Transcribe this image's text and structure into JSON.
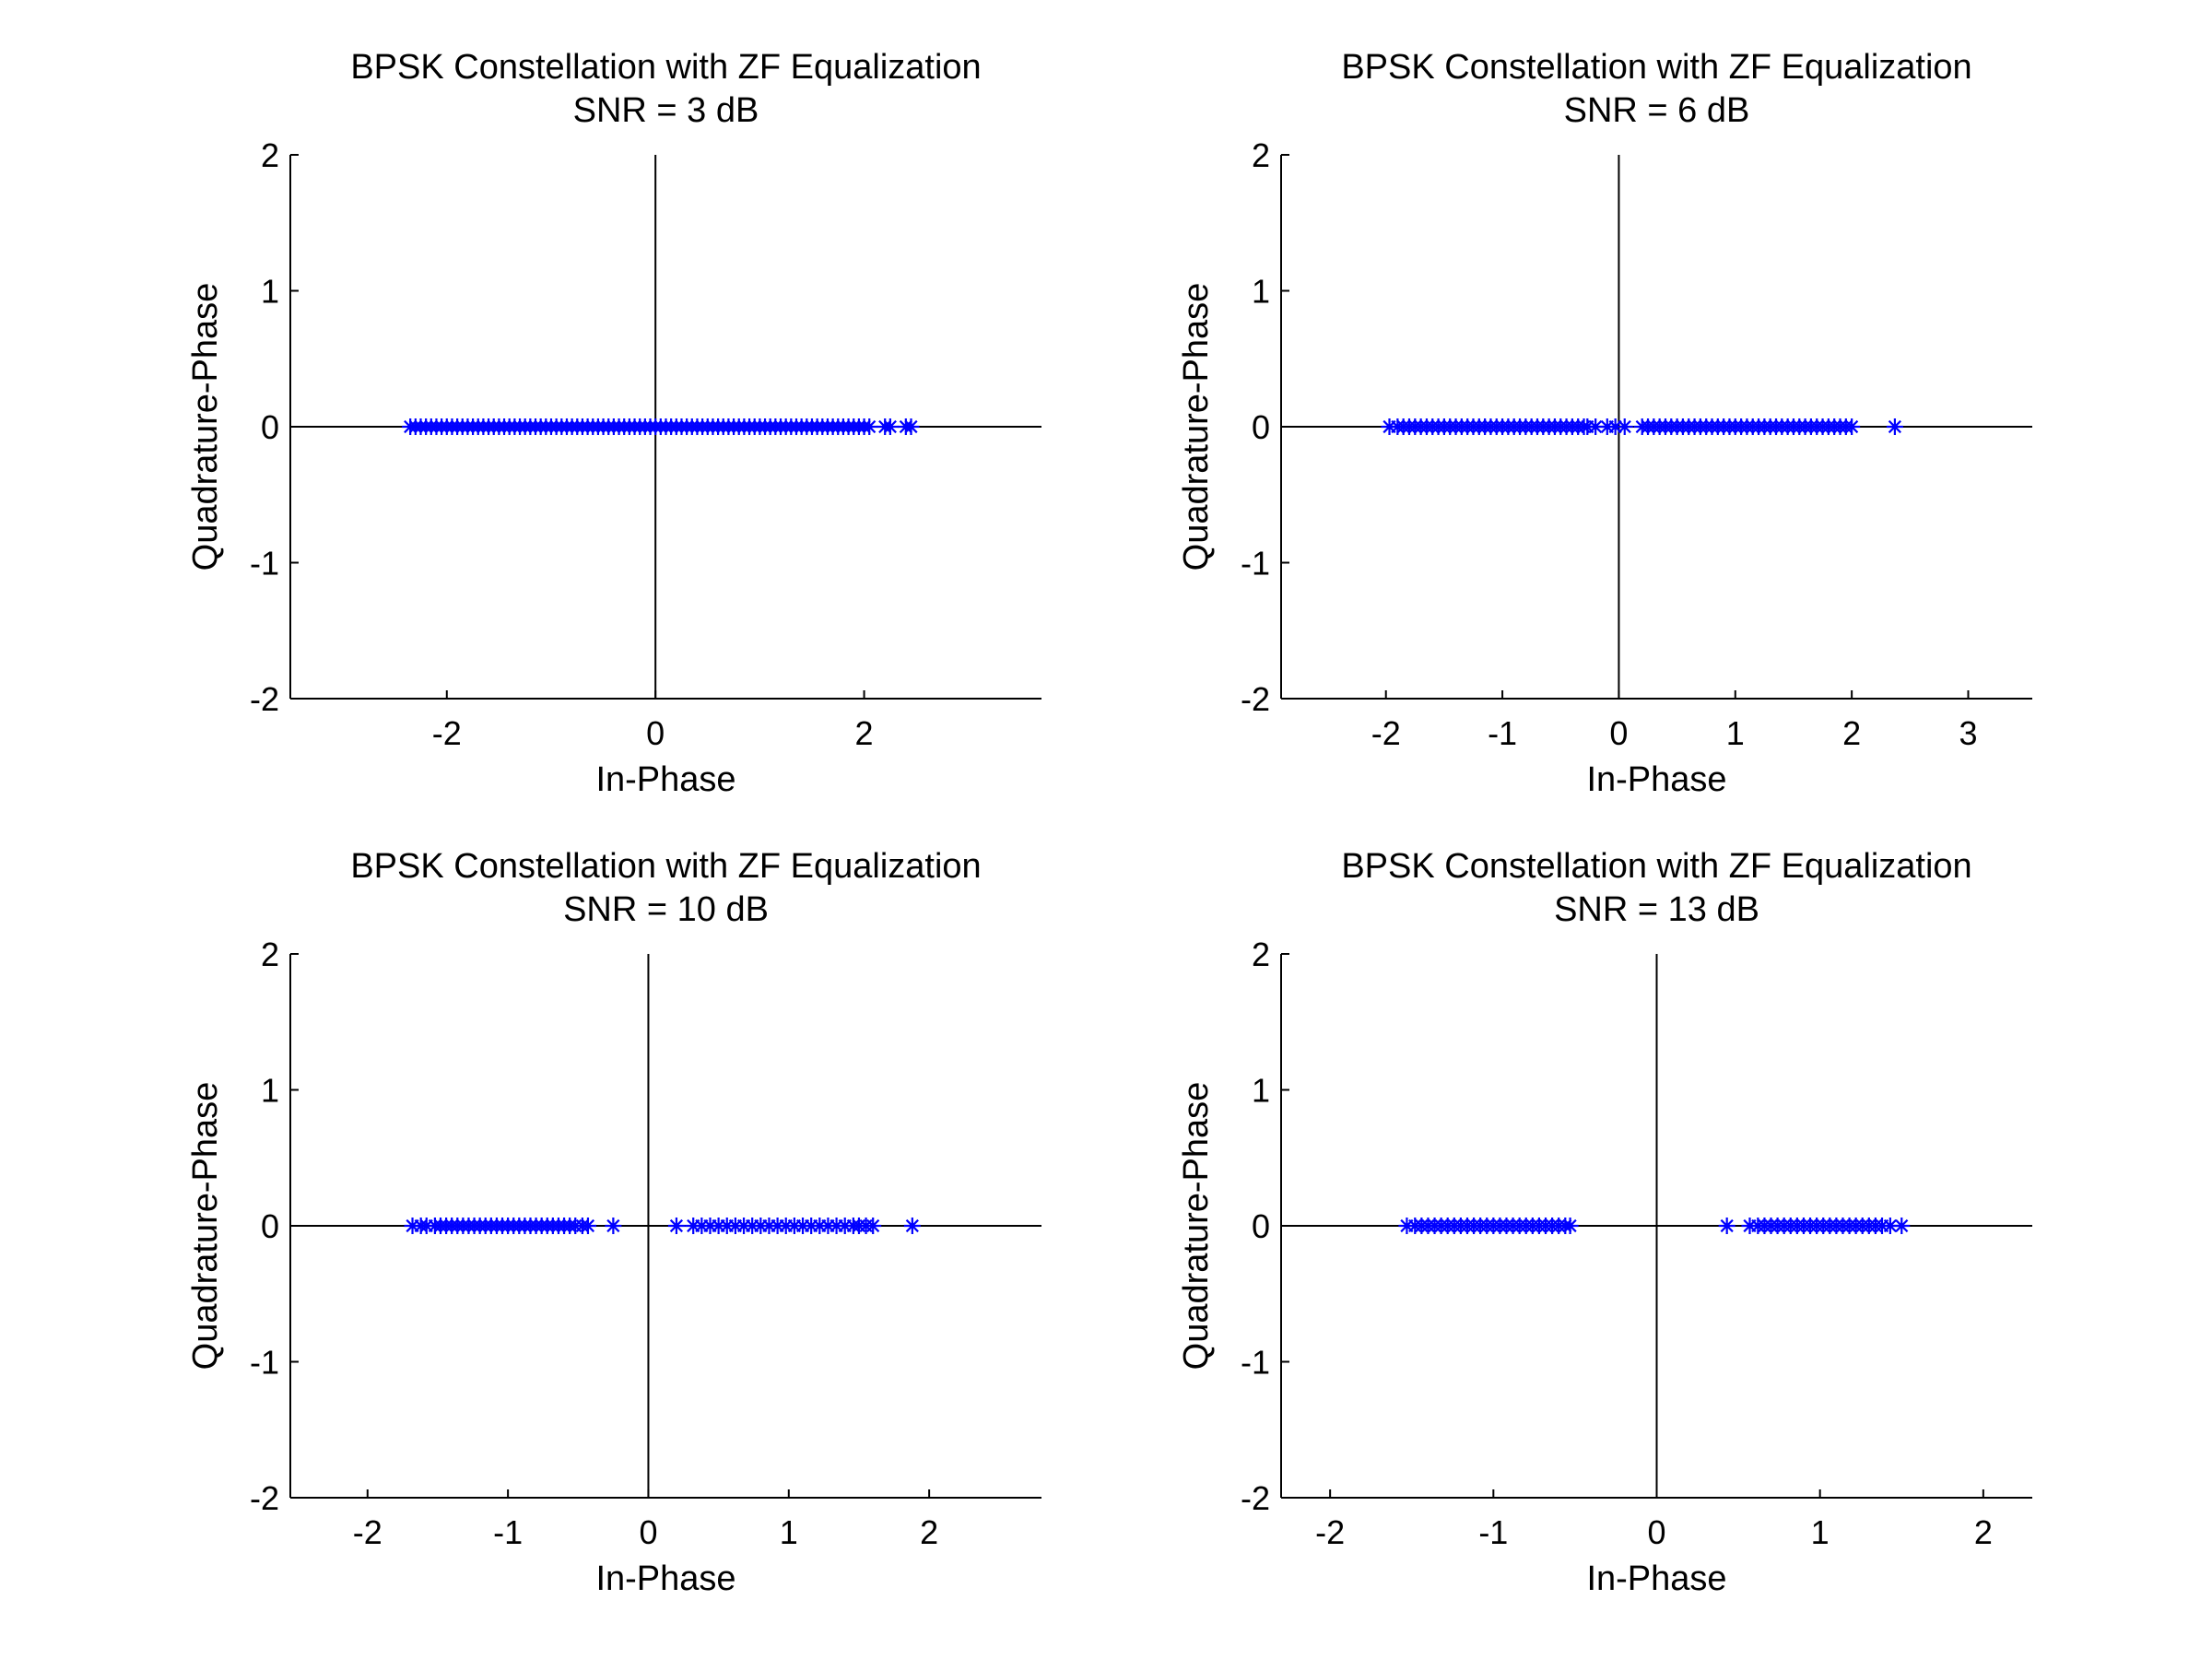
{
  "chart_data": [
    {
      "type": "scatter",
      "title": "BPSK Constellation with ZF Equalization",
      "subtitle": "SNR = 3 dB",
      "xlabel": "In-Phase",
      "ylabel": "Quadrature-Phase",
      "xlim": [
        -3.5,
        3.7
      ],
      "ylim": [
        -2,
        2
      ],
      "xticks": [
        -2,
        0,
        2
      ],
      "yticks": [
        -2,
        -1,
        0,
        1,
        2
      ],
      "axes_through_origin": true,
      "marker": "asterisk",
      "color": "#0000ff",
      "series": [
        {
          "x": [
            -2.35,
            -2.3,
            -2.25,
            -2.2,
            -2.15,
            -2.1,
            -2.05,
            -2.0,
            -1.95,
            -1.9,
            -1.85,
            -1.8,
            -1.75,
            -1.7,
            -1.65,
            -1.6,
            -1.55,
            -1.5,
            -1.45,
            -1.4,
            -1.35,
            -1.3,
            -1.25,
            -1.2,
            -1.15,
            -1.1,
            -1.05,
            -1.0,
            -0.95,
            -0.9,
            -0.85,
            -0.8,
            -0.75,
            -0.7,
            -0.65,
            -0.6,
            -0.55,
            -0.5,
            -0.45,
            -0.4,
            -0.35,
            -0.3,
            -0.25,
            -0.2,
            -0.15,
            -0.1,
            -0.05,
            0.0,
            0.05,
            0.1,
            0.15,
            0.2,
            0.25,
            0.3,
            0.35,
            0.4,
            0.45,
            0.5,
            0.55,
            0.6,
            0.65,
            0.7,
            0.75,
            0.8,
            0.85,
            0.9,
            0.95,
            1.0,
            1.05,
            1.1,
            1.15,
            1.2,
            1.25,
            1.3,
            1.35,
            1.4,
            1.45,
            1.5,
            1.55,
            1.6,
            1.65,
            1.7,
            1.75,
            1.8,
            1.85,
            1.9,
            1.95,
            2.0,
            2.05,
            2.2,
            2.25,
            2.4,
            2.45
          ],
          "y": [
            0,
            0,
            0,
            0,
            0,
            0,
            0,
            0,
            0,
            0,
            0,
            0,
            0,
            0,
            0,
            0,
            0,
            0,
            0,
            0,
            0,
            0,
            0,
            0,
            0,
            0,
            0,
            0,
            0,
            0,
            0,
            0,
            0,
            0,
            0,
            0,
            0,
            0,
            0,
            0,
            0,
            0,
            0,
            0,
            0,
            0,
            0,
            0,
            0,
            0,
            0,
            0,
            0,
            0,
            0,
            0,
            0,
            0,
            0,
            0,
            0,
            0,
            0,
            0,
            0,
            0,
            0,
            0,
            0,
            0,
            0,
            0,
            0,
            0,
            0,
            0,
            0,
            0,
            0,
            0,
            0,
            0,
            0,
            0,
            0,
            0,
            0,
            0,
            0,
            0,
            0,
            0,
            0
          ]
        }
      ]
    },
    {
      "type": "scatter",
      "title": "BPSK Constellation with ZF Equalization",
      "subtitle": "SNR = 6 dB",
      "xlabel": "In-Phase",
      "ylabel": "Quadrature-Phase",
      "xlim": [
        -2.9,
        3.55
      ],
      "ylim": [
        -2,
        2
      ],
      "xticks": [
        -2,
        -1,
        0,
        1,
        2,
        3
      ],
      "yticks": [
        -2,
        -1,
        0,
        1,
        2
      ],
      "axes_through_origin": true,
      "marker": "asterisk",
      "color": "#0000ff",
      "series": [
        {
          "x": [
            -1.97,
            -1.9,
            -1.85,
            -1.8,
            -1.75,
            -1.7,
            -1.65,
            -1.6,
            -1.55,
            -1.5,
            -1.45,
            -1.4,
            -1.35,
            -1.3,
            -1.25,
            -1.2,
            -1.15,
            -1.1,
            -1.05,
            -1.0,
            -0.95,
            -0.9,
            -0.85,
            -0.8,
            -0.75,
            -0.7,
            -0.65,
            -0.6,
            -0.55,
            -0.5,
            -0.45,
            -0.4,
            -0.35,
            -0.3,
            -0.27,
            -0.2,
            -0.1,
            -0.03,
            0.05,
            0.2,
            0.25,
            0.3,
            0.35,
            0.4,
            0.45,
            0.5,
            0.55,
            0.6,
            0.65,
            0.7,
            0.75,
            0.8,
            0.85,
            0.9,
            0.95,
            1.0,
            1.05,
            1.1,
            1.15,
            1.2,
            1.25,
            1.3,
            1.35,
            1.4,
            1.45,
            1.5,
            1.55,
            1.6,
            1.65,
            1.7,
            1.75,
            1.8,
            1.85,
            1.9,
            1.95,
            2.0,
            2.37
          ],
          "y": [
            0,
            0,
            0,
            0,
            0,
            0,
            0,
            0,
            0,
            0,
            0,
            0,
            0,
            0,
            0,
            0,
            0,
            0,
            0,
            0,
            0,
            0,
            0,
            0,
            0,
            0,
            0,
            0,
            0,
            0,
            0,
            0,
            0,
            0,
            0,
            0,
            0,
            0,
            0,
            0,
            0,
            0,
            0,
            0,
            0,
            0,
            0,
            0,
            0,
            0,
            0,
            0,
            0,
            0,
            0,
            0,
            0,
            0,
            0,
            0,
            0,
            0,
            0,
            0,
            0,
            0,
            0,
            0,
            0,
            0,
            0,
            0,
            0,
            0,
            0,
            0,
            0
          ]
        }
      ]
    },
    {
      "type": "scatter",
      "title": "BPSK Constellation with ZF Equalization",
      "subtitle": "SNR = 10 dB",
      "xlabel": "In-Phase",
      "ylabel": "Quadrature-Phase",
      "xlim": [
        -2.55,
        2.8
      ],
      "ylim": [
        -2,
        2
      ],
      "xticks": [
        -2,
        -1,
        0,
        1,
        2
      ],
      "yticks": [
        -2,
        -1,
        0,
        1,
        2
      ],
      "axes_through_origin": true,
      "marker": "asterisk",
      "color": "#0000ff",
      "series": [
        {
          "x": [
            -1.68,
            -1.62,
            -1.58,
            -1.52,
            -1.48,
            -1.44,
            -1.4,
            -1.36,
            -1.32,
            -1.28,
            -1.24,
            -1.2,
            -1.16,
            -1.12,
            -1.08,
            -1.04,
            -1.0,
            -0.96,
            -0.92,
            -0.88,
            -0.84,
            -0.8,
            -0.76,
            -0.72,
            -0.68,
            -0.64,
            -0.6,
            -0.56,
            -0.52,
            -0.47,
            -0.43,
            -0.25,
            0.2,
            0.32,
            0.38,
            0.44,
            0.5,
            0.56,
            0.62,
            0.68,
            0.74,
            0.8,
            0.86,
            0.92,
            0.98,
            1.04,
            1.1,
            1.16,
            1.22,
            1.28,
            1.34,
            1.4,
            1.46,
            1.5,
            1.55,
            1.6,
            1.88
          ],
          "y": [
            0,
            0,
            0,
            0,
            0,
            0,
            0,
            0,
            0,
            0,
            0,
            0,
            0,
            0,
            0,
            0,
            0,
            0,
            0,
            0,
            0,
            0,
            0,
            0,
            0,
            0,
            0,
            0,
            0,
            0,
            0,
            0,
            0,
            0,
            0,
            0,
            0,
            0,
            0,
            0,
            0,
            0,
            0,
            0,
            0,
            0,
            0,
            0,
            0,
            0,
            0,
            0,
            0,
            0,
            0,
            0,
            0
          ]
        }
      ]
    },
    {
      "type": "scatter",
      "title": "BPSK Constellation with ZF Equalization",
      "subtitle": "SNR = 13 dB",
      "xlabel": "In-Phase",
      "ylabel": "Quadrature-Phase",
      "xlim": [
        -2.3,
        2.3
      ],
      "ylim": [
        -2,
        2
      ],
      "xticks": [
        -2,
        -1,
        0,
        1,
        2
      ],
      "yticks": [
        -2,
        -1,
        0,
        1,
        2
      ],
      "axes_through_origin": true,
      "marker": "asterisk",
      "color": "#0000ff",
      "series": [
        {
          "x": [
            -1.53,
            -1.48,
            -1.44,
            -1.4,
            -1.36,
            -1.32,
            -1.28,
            -1.24,
            -1.2,
            -1.16,
            -1.12,
            -1.08,
            -1.04,
            -1.0,
            -0.96,
            -0.92,
            -0.88,
            -0.84,
            -0.8,
            -0.76,
            -0.72,
            -0.68,
            -0.64,
            -0.6,
            -0.56,
            -0.53,
            0.43,
            0.57,
            0.62,
            0.66,
            0.7,
            0.74,
            0.78,
            0.82,
            0.86,
            0.9,
            0.94,
            0.98,
            1.02,
            1.06,
            1.1,
            1.14,
            1.18,
            1.22,
            1.26,
            1.3,
            1.34,
            1.38,
            1.43,
            1.5
          ],
          "y": [
            0,
            0,
            0,
            0,
            0,
            0,
            0,
            0,
            0,
            0,
            0,
            0,
            0,
            0,
            0,
            0,
            0,
            0,
            0,
            0,
            0,
            0,
            0,
            0,
            0,
            0,
            0,
            0,
            0,
            0,
            0,
            0,
            0,
            0,
            0,
            0,
            0,
            0,
            0,
            0,
            0,
            0,
            0,
            0,
            0,
            0,
            0,
            0,
            0,
            0
          ]
        }
      ]
    }
  ]
}
